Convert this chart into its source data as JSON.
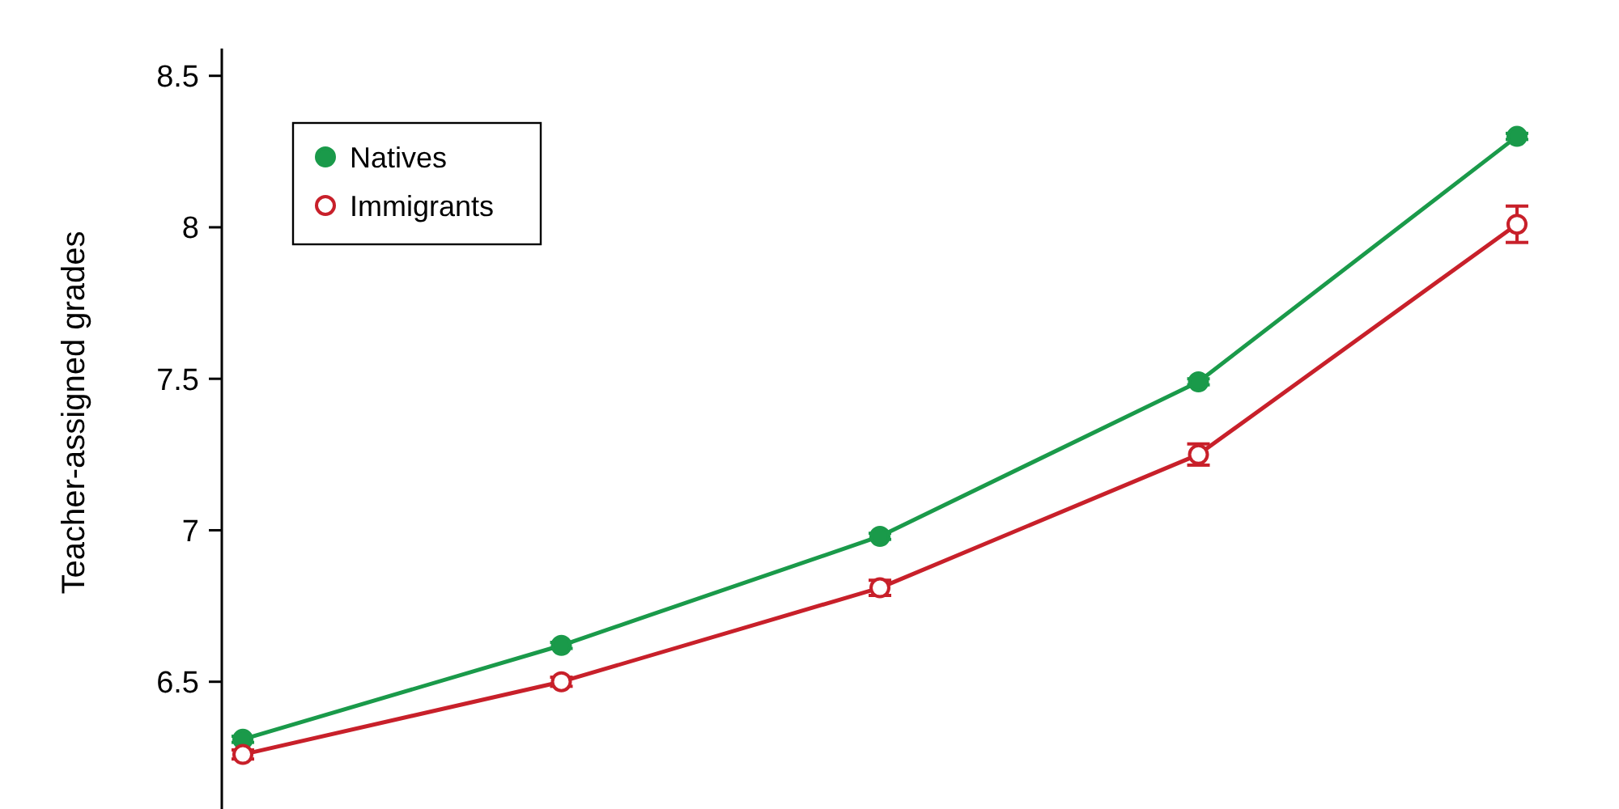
{
  "chart_data": {
    "type": "line",
    "ylabel": "Teacher-assigned grades",
    "categories": [
      null,
      null,
      null,
      null,
      null
    ],
    "series": [
      {
        "name": "Natives",
        "color": "#1a9a4a",
        "values": [
          6.31,
          6.62,
          6.98,
          7.49,
          8.3
        ],
        "errors": [
          0.01,
          0.01,
          0.01,
          0.01,
          0.01
        ]
      },
      {
        "name": "Immigrants",
        "color": "#c8202a",
        "values": [
          6.26,
          6.5,
          6.81,
          7.25,
          8.01
        ],
        "errors": [
          0.015,
          0.015,
          0.025,
          0.035,
          0.06
        ]
      }
    ],
    "ylim": [
      6.08,
      8.59
    ],
    "yticks": [
      6.5,
      7,
      7.5,
      8,
      8.5
    ],
    "legend": "top left",
    "marker": "circle",
    "line_style": "solid",
    "grid": false
  }
}
